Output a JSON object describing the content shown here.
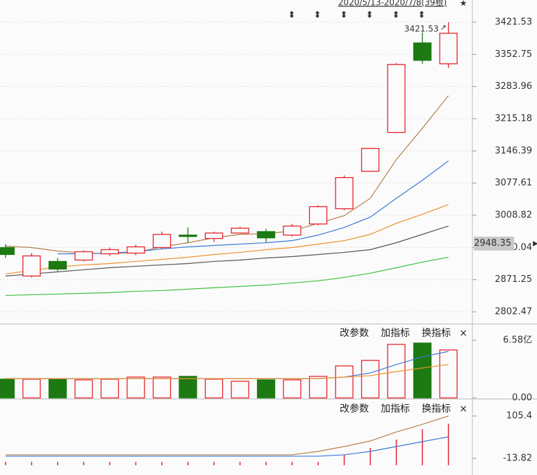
{
  "chart_data": [
    {
      "type": "candlestick",
      "range_label": "2020/5/13-2020/7/8(39根)",
      "open": [
        2939.8,
        2879.0,
        2910.2,
        2913.1,
        2926.5,
        2928.0,
        2939.8,
        2966.5,
        2959.1,
        2970.9,
        2973.9,
        2966.5,
        2990.2,
        3022.8,
        3102.9,
        3185.9,
        3377.1,
        3332.6
      ],
      "high": [
        2947.2,
        2927.9,
        2917.6,
        2933.9,
        2939.8,
        2945.7,
        2973.9,
        2982.8,
        2973.9,
        2984.3,
        2979.8,
        2990.2,
        3030.2,
        3094.0,
        3153.3,
        3334.1,
        3399.3,
        3421.53
      ],
      "low": [
        2917.6,
        2876.1,
        2889.4,
        2910.2,
        2922.0,
        2923.5,
        2936.9,
        2950.2,
        2951.7,
        2969.5,
        2951.7,
        2963.5,
        2987.3,
        3019.9,
        3102.9,
        3184.4,
        3332.6,
        3323.7
      ],
      "close": [
        2925.0,
        2922.0,
        2893.9,
        2930.9,
        2935.4,
        2941.3,
        2968.0,
        2963.5,
        2970.9,
        2981.3,
        2960.6,
        2985.8,
        3027.3,
        3089.5,
        3151.8,
        3331.1,
        3340.0,
        3397.8
      ],
      "up_color": "#e8232b",
      "down_color": "#1d7a12",
      "series": [
        {
          "color": "#b5804a",
          "values": [
            2942.8,
            2939.8,
            2932.4,
            2928.0,
            2926.5,
            2929.5,
            2941.3,
            2950.2,
            2960.6,
            2968.0,
            2969.5,
            2975.4,
            2991.7,
            3008.0,
            3045.0,
            3128.0,
            3194.8,
            3264.4
          ]
        },
        {
          "color": "#3a78d8",
          "values": [
            null,
            null,
            2926.5,
            2926.5,
            2928.0,
            2930.9,
            2936.9,
            2941.3,
            2944.3,
            2947.2,
            2950.2,
            2954.6,
            2966.5,
            2982.8,
            3005.0,
            3045.0,
            3083.6,
            3125.1
          ]
        },
        {
          "color": "#f0902a",
          "values": [
            2883.5,
            2890.9,
            2898.3,
            2902.8,
            2905.7,
            2910.2,
            2914.6,
            2919.1,
            2925.0,
            2929.5,
            2935.4,
            2939.8,
            2947.2,
            2954.6,
            2968.0,
            2991.7,
            3011.0,
            3031.7
          ]
        },
        {
          "color": "#555555",
          "values": [
            2879.0,
            2883.5,
            2887.9,
            2892.4,
            2896.8,
            2899.8,
            2902.8,
            2905.7,
            2910.2,
            2913.1,
            2917.6,
            2920.5,
            2925.0,
            2929.5,
            2935.4,
            2950.2,
            2968.0,
            2985.8
          ]
        },
        {
          "color": "#3cc23c",
          "values": [
            2837.5,
            2839.0,
            2840.5,
            2842.0,
            2843.5,
            2846.4,
            2847.9,
            2850.9,
            2853.9,
            2856.8,
            2859.8,
            2864.2,
            2868.7,
            2876.1,
            2885.0,
            2896.8,
            2908.7,
            2919.1
          ]
        }
      ],
      "last_price": 2948.35,
      "ylim": [
        2777.3,
        3468.9
      ],
      "yticks": [
        3421.53,
        3352.75,
        3283.96,
        3215.18,
        3146.39,
        3077.61,
        3008.82,
        2940.04,
        2871.25,
        2802.47
      ],
      "grid": true
    },
    {
      "type": "bar",
      "buttons": [
        "改参数",
        "加指标",
        "换指标",
        "×"
      ],
      "values": [
        2.14,
        2.14,
        2.14,
        2.06,
        2.14,
        2.38,
        2.38,
        2.46,
        2.14,
        1.9,
        2.06,
        2.06,
        2.46,
        3.65,
        4.28,
        6.11,
        6.26,
        5.47
      ],
      "series": [
        {
          "color": "#3a78d8",
          "values": [
            2.2,
            2.2,
            2.2,
            2.2,
            2.2,
            2.2,
            2.2,
            2.2,
            2.2,
            2.2,
            2.2,
            2.2,
            2.2,
            2.38,
            2.85,
            3.81,
            4.68,
            5.31
          ]
        },
        {
          "color": "#f0902a",
          "values": [
            2.2,
            2.2,
            2.2,
            2.2,
            2.2,
            2.2,
            2.2,
            2.2,
            2.2,
            2.2,
            2.2,
            2.2,
            2.2,
            2.38,
            2.54,
            3.01,
            3.41,
            3.81
          ]
        }
      ],
      "ylim": [
        0,
        8.32
      ],
      "yticks": [
        {
          "value": 6.58,
          "label": "6.58亿"
        },
        {
          "value": 0,
          "label": "0.00"
        }
      ]
    },
    {
      "type": "line",
      "buttons": [
        "改参数",
        "加指标",
        "换指标",
        "×"
      ],
      "bar_color": "#e8232b",
      "bar_values": [
        -23.6,
        -23.6,
        -23.6,
        -23.6,
        -23.6,
        -23.6,
        -23.6,
        -23.6,
        -23.6,
        -23.6,
        -23.6,
        -23.6,
        -23.6,
        -4.0,
        15.5,
        39.0,
        68.3,
        83.9
      ],
      "series": [
        {
          "color": "#b5804a",
          "values": [
            -4.0,
            -4.0,
            -4.0,
            -4.0,
            -4.0,
            -4.0,
            -4.0,
            -4.0,
            -4.0,
            -4.0,
            -4.0,
            -4.0,
            5.7,
            19.4,
            35.0,
            60.4,
            81.9,
            105.4
          ]
        },
        {
          "color": "#3a78d8",
          "values": [
            -7.9,
            -7.9,
            -7.9,
            -7.9,
            -7.9,
            -7.9,
            -7.9,
            -7.9,
            -7.9,
            -7.9,
            -7.9,
            -7.9,
            -7.9,
            -4.0,
            5.7,
            19.4,
            33.1,
            46.7
          ]
        }
      ],
      "ylim": [
        -33.4,
        148.4
      ],
      "yticks": [
        105.4,
        {
          "value": -13.82,
          "label": "-13.82"
        }
      ]
    }
  ]
}
